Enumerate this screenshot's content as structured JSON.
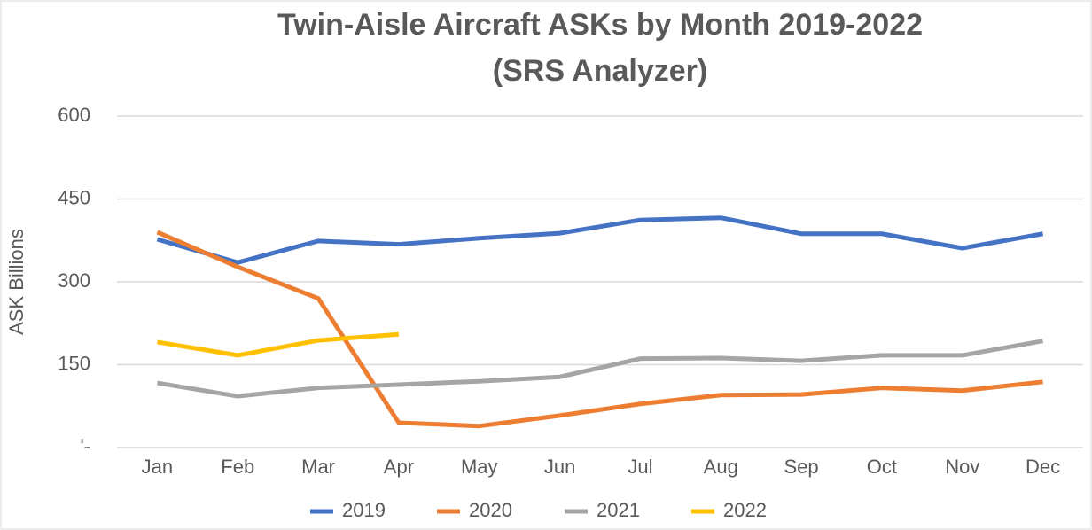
{
  "chart_data": {
    "type": "line",
    "title": "Twin-Aisle Aircraft ASKs by Month 2019-2022",
    "subtitle": "(SRS Analyzer)",
    "y_label": "ASK Billions",
    "categories": [
      "Jan",
      "Feb",
      "Mar",
      "Apr",
      "May",
      "Jun",
      "Jul",
      "Aug",
      "Sep",
      "Oct",
      "Nov",
      "Dec"
    ],
    "series": [
      {
        "name": "2019",
        "color": "#4472c4",
        "values": [
          377,
          335,
          374,
          368,
          379,
          388,
          412,
          416,
          387,
          387,
          361,
          387
        ]
      },
      {
        "name": "2020",
        "color": "#ed7d31",
        "values": [
          390,
          327,
          270,
          45,
          39,
          58,
          79,
          95,
          96,
          108,
          103,
          119
        ]
      },
      {
        "name": "2021",
        "color": "#a5a5a5",
        "values": [
          117,
          93,
          108,
          114,
          120,
          128,
          161,
          162,
          157,
          167,
          167,
          193
        ]
      },
      {
        "name": "2022",
        "color": "#ffc000",
        "values": [
          191,
          167,
          194,
          205,
          null,
          null,
          null,
          null,
          null,
          null,
          null,
          null
        ]
      }
    ],
    "ylim": [
      0,
      600
    ],
    "yticks": [
      {
        "value": 0,
        "label": "'-"
      },
      150,
      300,
      450,
      600
    ],
    "grid": true,
    "legend": "bottom"
  }
}
